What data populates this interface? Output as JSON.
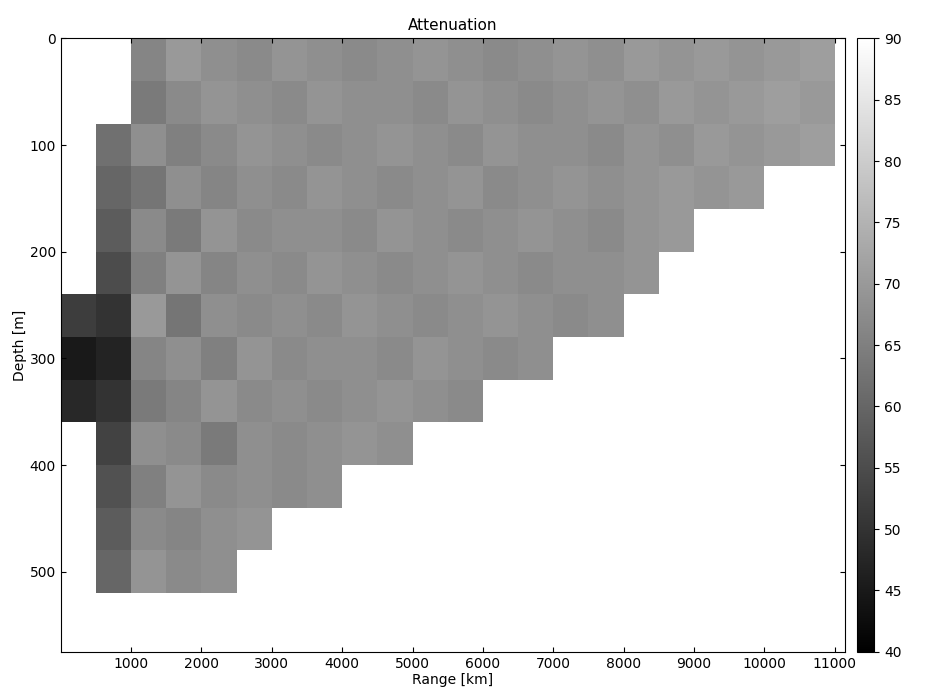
{
  "chart_data": {
    "type": "heatmap",
    "title": "Attenuation",
    "x_label": "Range [km]",
    "y_label": "Depth [m]",
    "x": [
      250,
      750,
      1250,
      1750,
      2250,
      2750,
      3250,
      3750,
      4250,
      4750,
      5250,
      5750,
      6250,
      6750,
      7250,
      7750,
      8250,
      8750,
      9250,
      9750,
      10250,
      10750
    ],
    "y": [
      20,
      60,
      100,
      140,
      180,
      220,
      260,
      300,
      340,
      380,
      420,
      460,
      500
    ],
    "cells": [
      [
        null,
        null,
        66,
        70,
        68,
        67,
        69,
        68,
        67,
        68,
        69,
        68,
        67,
        68,
        69,
        68,
        70,
        69,
        70,
        69,
        70,
        71
      ],
      [
        null,
        null,
        64,
        67,
        69,
        68,
        67,
        69,
        68,
        68,
        67,
        69,
        68,
        67,
        68,
        69,
        68,
        70,
        69,
        70,
        71,
        70
      ],
      [
        null,
        62,
        68,
        65,
        67,
        69,
        68,
        67,
        68,
        69,
        68,
        67,
        69,
        68,
        68,
        67,
        69,
        68,
        70,
        69,
        70,
        71
      ],
      [
        null,
        60,
        63,
        68,
        66,
        68,
        67,
        69,
        68,
        67,
        68,
        69,
        67,
        68,
        69,
        68,
        69,
        70,
        69,
        70,
        null,
        null
      ],
      [
        null,
        58,
        67,
        64,
        69,
        67,
        68,
        68,
        67,
        69,
        68,
        67,
        68,
        69,
        68,
        67,
        69,
        70,
        null,
        null,
        null,
        null
      ],
      [
        null,
        55,
        65,
        69,
        66,
        68,
        67,
        69,
        68,
        67,
        68,
        69,
        68,
        67,
        68,
        68,
        69,
        null,
        null,
        null,
        null,
        null
      ],
      [
        52,
        50,
        70,
        63,
        68,
        67,
        68,
        67,
        69,
        68,
        67,
        68,
        69,
        68,
        67,
        68,
        null,
        null,
        null,
        null,
        null,
        null
      ],
      [
        45,
        47,
        66,
        68,
        65,
        69,
        67,
        68,
        68,
        67,
        69,
        68,
        67,
        68,
        null,
        null,
        null,
        null,
        null,
        null,
        null,
        null
      ],
      [
        48,
        50,
        64,
        66,
        69,
        67,
        68,
        67,
        68,
        69,
        68,
        67,
        null,
        null,
        null,
        null,
        null,
        null,
        null,
        null,
        null,
        null
      ],
      [
        null,
        53,
        68,
        67,
        64,
        68,
        67,
        68,
        69,
        68,
        null,
        null,
        null,
        null,
        null,
        null,
        null,
        null,
        null,
        null,
        null,
        null
      ],
      [
        null,
        56,
        65,
        69,
        67,
        68,
        67,
        68,
        null,
        null,
        null,
        null,
        null,
        null,
        null,
        null,
        null,
        null,
        null,
        null,
        null,
        null
      ],
      [
        null,
        58,
        67,
        66,
        68,
        69,
        null,
        null,
        null,
        null,
        null,
        null,
        null,
        null,
        null,
        null,
        null,
        null,
        null,
        null,
        null,
        null
      ],
      [
        null,
        60,
        69,
        67,
        68,
        null,
        null,
        null,
        null,
        null,
        null,
        null,
        null,
        null,
        null,
        null,
        null,
        null,
        null,
        null,
        null,
        null
      ]
    ],
    "color": "gray",
    "xlim": [
      0,
      11150
    ],
    "xticks": [
      1000,
      2000,
      3000,
      4000,
      5000,
      6000,
      7000,
      8000,
      9000,
      10000,
      11000
    ],
    "ylim": [
      575,
      0
    ],
    "yticks": [
      0,
      100,
      200,
      300,
      400,
      500
    ],
    "colorbar_range": [
      40,
      90
    ],
    "colorbar_ticks": [
      40,
      45,
      50,
      55,
      60,
      65,
      70,
      75,
      80,
      85,
      90
    ],
    "grid": false
  }
}
